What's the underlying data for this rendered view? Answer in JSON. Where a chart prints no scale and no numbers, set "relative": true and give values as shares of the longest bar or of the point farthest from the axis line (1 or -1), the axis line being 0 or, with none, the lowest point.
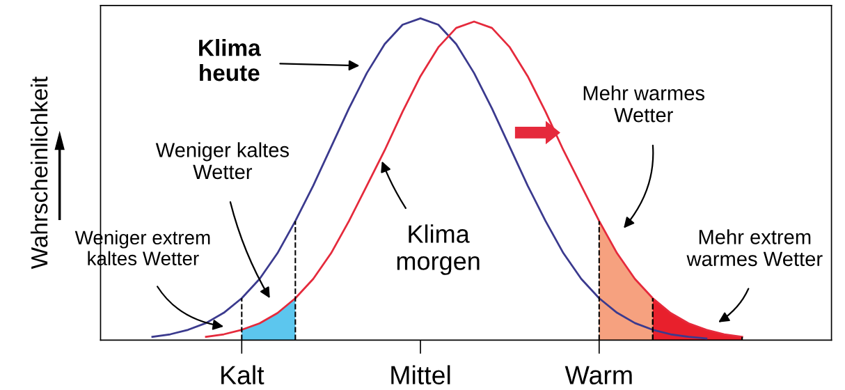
{
  "chart_data": {
    "type": "line",
    "relative": true,
    "ylabel": "Wahrscheinlichkeit",
    "categories": [
      null,
      null,
      null,
      null,
      null,
      "Kalt",
      null,
      null,
      null,
      null,
      null,
      null,
      null,
      null,
      null,
      "Mittel",
      null,
      null,
      null,
      null,
      null,
      null,
      null,
      null,
      null,
      "Warm",
      null,
      null,
      null,
      null,
      null,
      null,
      null,
      null
    ],
    "tick_labels": "x",
    "grid": false,
    "legend": false,
    "marker": "none",
    "line_style": "solid",
    "series": [
      {
        "color": "#3b3a8e",
        "values": [
          0.01,
          0.018,
          0.032,
          0.053,
          0.085,
          0.13,
          0.19,
          0.27,
          0.37,
          0.48,
          0.6,
          0.72,
          0.83,
          0.92,
          0.98,
          1,
          0.98,
          0.92,
          0.83,
          0.72,
          0.6,
          0.48,
          0.37,
          0.27,
          0.19,
          0.13,
          0.085,
          0.053,
          0.032,
          0.018,
          0.01,
          0.005,
          null,
          null
        ]
      },
      {
        "color": "#e52a3c",
        "values": [
          null,
          null,
          null,
          0.01,
          0.018,
          0.032,
          0.052,
          0.084,
          0.13,
          0.19,
          0.27,
          0.37,
          0.48,
          0.59,
          0.71,
          0.82,
          0.91,
          0.97,
          0.99,
          0.97,
          0.91,
          0.82,
          0.71,
          0.59,
          0.48,
          0.37,
          0.27,
          0.19,
          0.13,
          0.084,
          0.052,
          0.032,
          0.018,
          0.01
        ]
      },
      {
        "type": "area",
        "color": "#5cc6ee",
        "line_style": "dashed",
        "values": [
          null,
          null,
          null,
          null,
          null,
          0.032,
          0.052,
          0.084,
          0.13,
          null,
          null,
          null,
          null,
          null,
          null,
          null,
          null,
          null,
          null,
          null,
          null,
          null,
          null,
          null,
          null,
          null,
          null,
          null,
          null,
          null,
          null,
          null,
          null,
          null
        ]
      },
      {
        "type": "area",
        "color": "#f6a17f",
        "line_style": "dashed",
        "values": [
          null,
          null,
          null,
          null,
          null,
          null,
          null,
          null,
          null,
          null,
          null,
          null,
          null,
          null,
          null,
          null,
          null,
          null,
          null,
          null,
          null,
          null,
          null,
          null,
          null,
          0.37,
          0.27,
          0.19,
          0.13,
          null,
          null,
          null,
          null,
          null
        ]
      },
      {
        "type": "area",
        "color": "#e8202c",
        "line_style": "dashed",
        "values": [
          null,
          null,
          null,
          null,
          null,
          null,
          null,
          null,
          null,
          null,
          null,
          null,
          null,
          null,
          null,
          null,
          null,
          null,
          null,
          null,
          null,
          null,
          null,
          null,
          null,
          null,
          null,
          null,
          0.13,
          0.084,
          0.052,
          0.032,
          0.018,
          0.01
        ]
      }
    ],
    "annotations": [
      "Klima\nheute",
      "Weniger kaltes\nWetter",
      "Weniger extrem\nkaltes Wetter",
      "Klima\nmorgen",
      "Mehr warmes\nWetter",
      "Mehr extrem\nwarmes Wetter"
    ]
  }
}
